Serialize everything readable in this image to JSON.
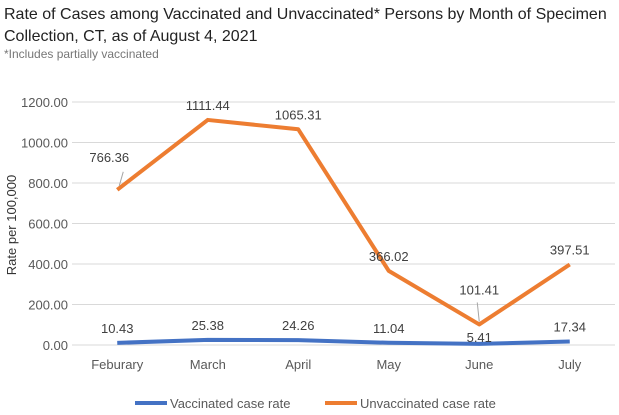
{
  "chart_data": {
    "type": "line",
    "title": "Rate of Cases among Vaccinated and Unvaccinated* Persons by Month of Specimen Collection, CT, as of August 4, 2021",
    "subtitle": "*Includes partially vaccinated",
    "xlabel": "",
    "ylabel": "Rate per 100,000",
    "ylim": [
      0,
      1200
    ],
    "yticks": [
      "0.00",
      "200.00",
      "400.00",
      "600.00",
      "800.00",
      "1000.00",
      "1200.00"
    ],
    "categories": [
      "Feburary",
      "March",
      "April",
      "May",
      "June",
      "July"
    ],
    "grid": true,
    "legend": "bottom",
    "series": [
      {
        "name": "Vaccinated case rate",
        "color": "#4472C4",
        "values": [
          10.43,
          25.38,
          24.26,
          11.04,
          5.41,
          17.34
        ],
        "labels": [
          "10.43",
          "25.38",
          "24.26",
          "11.04",
          "5.41",
          "17.34"
        ]
      },
      {
        "name": "Unvaccinated case rate",
        "color": "#ED7D31",
        "values": [
          766.36,
          1111.44,
          1065.31,
          366.02,
          101.41,
          397.51
        ],
        "labels": [
          "766.36",
          "1111.44",
          "1065.31",
          "366.02",
          "101.41",
          "397.51"
        ]
      }
    ]
  }
}
